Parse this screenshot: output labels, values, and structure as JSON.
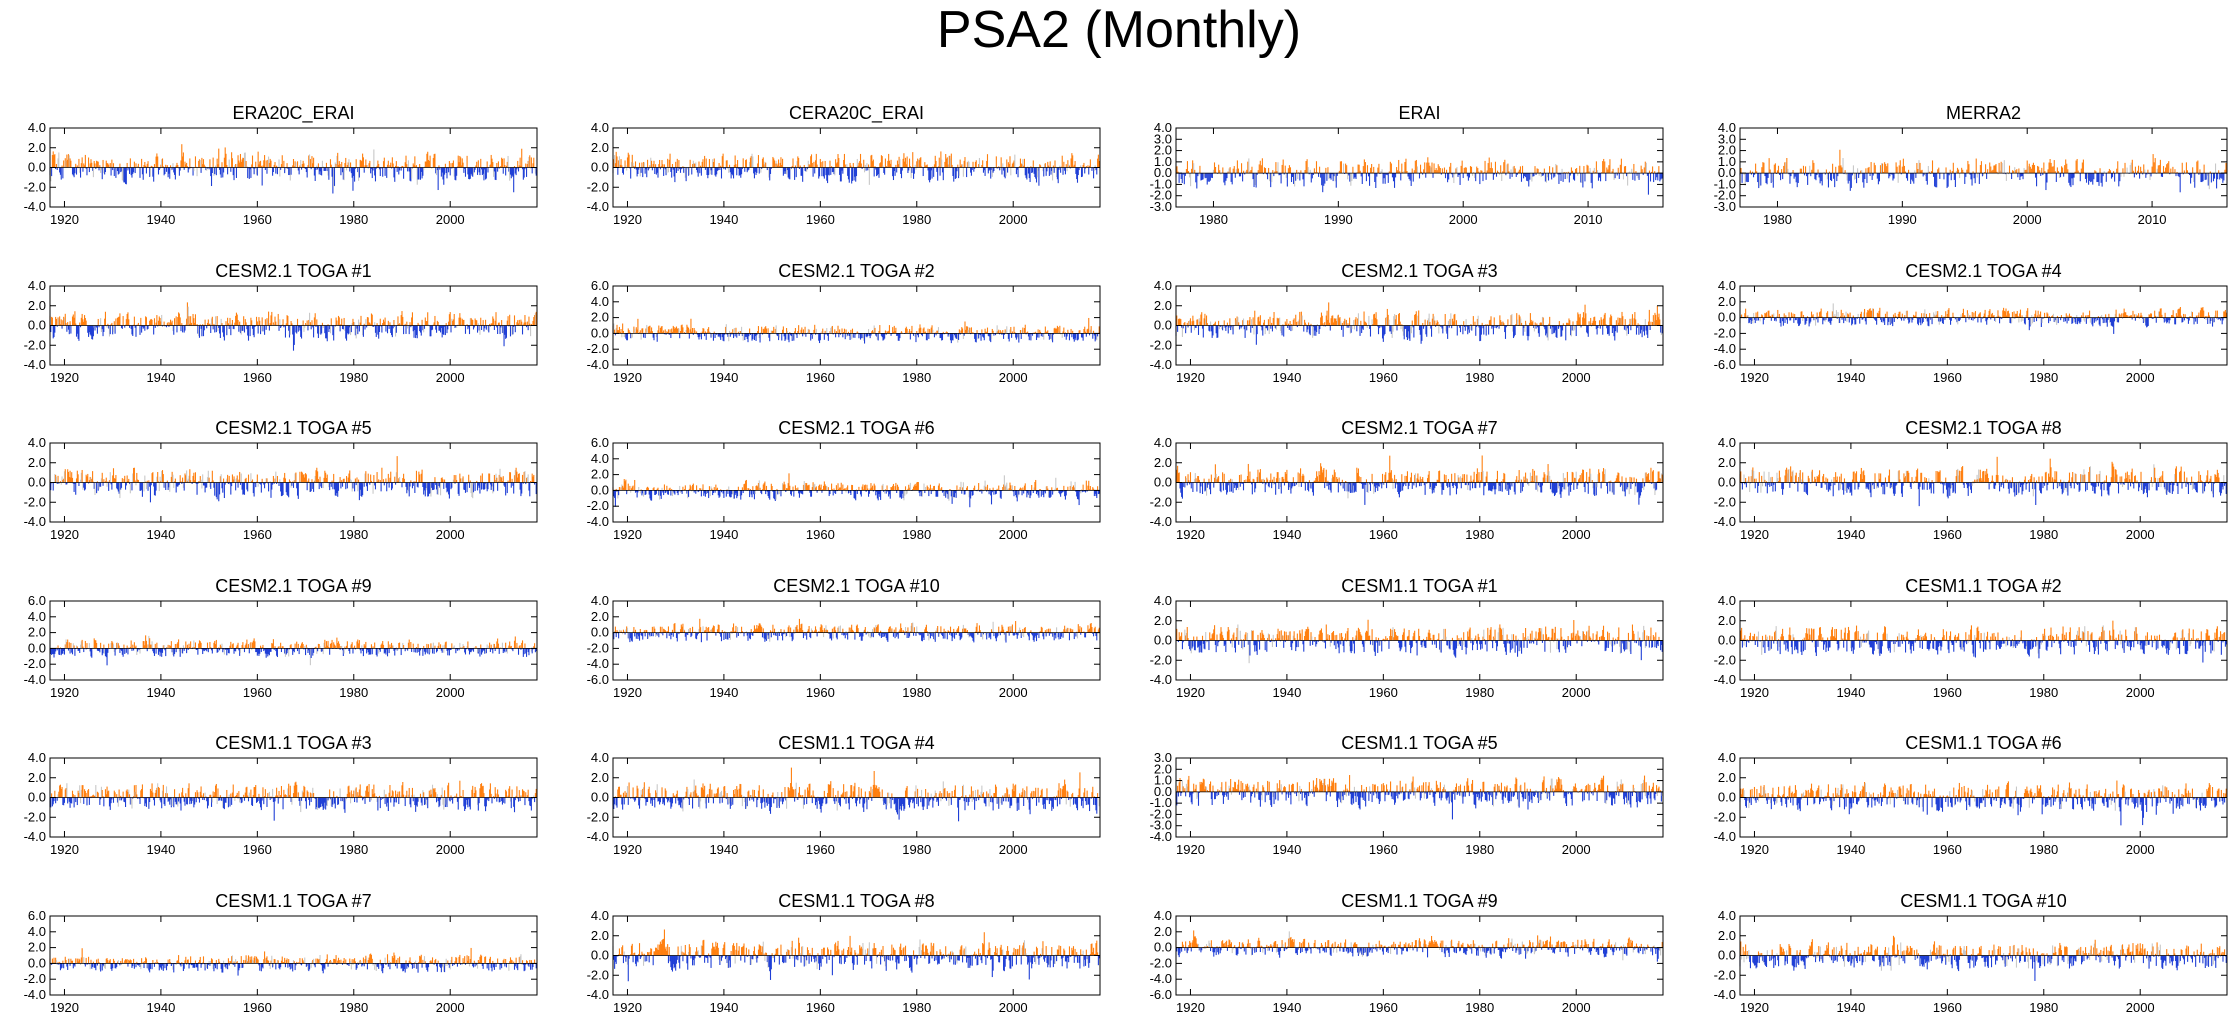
{
  "title": "PSA2 (Monthly)",
  "colors": {
    "positive": "#ff7f0e",
    "negative": "#1f3fd6",
    "axis": "#000000",
    "faint": "#c8c8c8"
  },
  "chart_data": [
    {
      "type": "bar",
      "title": "ERA20C_ERAI",
      "x_range": [
        1917,
        2018
      ],
      "x_ticks": [
        1920,
        1940,
        1960,
        1980,
        2000
      ],
      "y_range": [
        -4,
        4
      ],
      "y_ticks": [
        "4.0",
        "2.0",
        "0.0",
        "-2.0",
        "-4.0"
      ],
      "y_values": [
        4,
        2,
        0,
        -2,
        -4
      ],
      "amplitude": 2.0,
      "pos_bias": 0.0,
      "seed": 11
    },
    {
      "type": "bar",
      "title": "CERA20C_ERAI",
      "x_range": [
        1917,
        2018
      ],
      "x_ticks": [
        1920,
        1940,
        1960,
        1980,
        2000
      ],
      "y_range": [
        -4,
        4
      ],
      "y_ticks": [
        "4.0",
        "2.0",
        "0.0",
        "-2.0",
        "-4.0"
      ],
      "y_values": [
        4,
        2,
        0,
        -2,
        -4
      ],
      "amplitude": 2.0,
      "pos_bias": 0.0,
      "seed": 12
    },
    {
      "type": "bar",
      "title": "ERAI",
      "x_range": [
        1977,
        2016
      ],
      "x_ticks": [
        1980,
        1990,
        2000,
        2010
      ],
      "y_range": [
        -3,
        4
      ],
      "y_ticks": [
        "4.0",
        "3.0",
        "2.0",
        "1.0",
        "0.0",
        "-1.0",
        "-2.0",
        "-3.0"
      ],
      "y_values": [
        4,
        3,
        2,
        1,
        0,
        -1,
        -2,
        -3
      ],
      "amplitude": 1.8,
      "pos_bias": 0.0,
      "seed": 13
    },
    {
      "type": "bar",
      "title": "MERRA2",
      "x_range": [
        1977,
        2016
      ],
      "x_ticks": [
        1980,
        1990,
        2000,
        2010
      ],
      "y_range": [
        -3,
        4
      ],
      "y_ticks": [
        "4.0",
        "3.0",
        "2.0",
        "1.0",
        "0.0",
        "-1.0",
        "-2.0",
        "-3.0"
      ],
      "y_values": [
        4,
        3,
        2,
        1,
        0,
        -1,
        -2,
        -3
      ],
      "amplitude": 1.8,
      "pos_bias": 0.0,
      "seed": 14
    },
    {
      "type": "bar",
      "title": "CESM2.1 TOGA #1",
      "x_range": [
        1917,
        2018
      ],
      "x_ticks": [
        1920,
        1940,
        1960,
        1980,
        2000
      ],
      "y_range": [
        -4,
        4
      ],
      "y_ticks": [
        "4.0",
        "2.0",
        "0.0",
        "-2.0",
        "-4.0"
      ],
      "y_values": [
        4,
        2,
        0,
        -2,
        -4
      ],
      "amplitude": 2.0,
      "pos_bias": 0.0,
      "seed": 21
    },
    {
      "type": "bar",
      "title": "CESM2.1 TOGA #2",
      "x_range": [
        1917,
        2018
      ],
      "x_ticks": [
        1920,
        1940,
        1960,
        1980,
        2000
      ],
      "y_range": [
        -4,
        6
      ],
      "y_ticks": [
        "6.0",
        "4.0",
        "2.0",
        "0.0",
        "-2.0",
        "-4.0"
      ],
      "y_values": [
        6,
        4,
        2,
        0,
        -2,
        -4
      ],
      "amplitude": 1.6,
      "pos_bias": 0.0,
      "seed": 22
    },
    {
      "type": "bar",
      "title": "CESM2.1 TOGA #3",
      "x_range": [
        1917,
        2018
      ],
      "x_ticks": [
        1920,
        1940,
        1960,
        1980,
        2000
      ],
      "y_range": [
        -4,
        4
      ],
      "y_ticks": [
        "4.0",
        "2.0",
        "0.0",
        "-2.0",
        "-4.0"
      ],
      "y_values": [
        4,
        2,
        0,
        -2,
        -4
      ],
      "amplitude": 2.0,
      "pos_bias": 0.0,
      "seed": 23
    },
    {
      "type": "bar",
      "title": "CESM2.1 TOGA #4",
      "x_range": [
        1917,
        2018
      ],
      "x_ticks": [
        1920,
        1940,
        1960,
        1980,
        2000
      ],
      "y_range": [
        -6,
        4
      ],
      "y_ticks": [
        "4.0",
        "2.0",
        "0.0",
        "-2.0",
        "-4.0",
        "-6.0"
      ],
      "y_values": [
        4,
        2,
        0,
        -2,
        -4,
        -6
      ],
      "amplitude": 1.6,
      "pos_bias": 0.0,
      "seed": 24
    },
    {
      "type": "bar",
      "title": "CESM2.1 TOGA #5",
      "x_range": [
        1917,
        2018
      ],
      "x_ticks": [
        1920,
        1940,
        1960,
        1980,
        2000
      ],
      "y_range": [
        -4,
        4
      ],
      "y_ticks": [
        "4.0",
        "2.0",
        "0.0",
        "-2.0",
        "-4.0"
      ],
      "y_values": [
        4,
        2,
        0,
        -2,
        -4
      ],
      "amplitude": 2.0,
      "pos_bias": 0.0,
      "seed": 31
    },
    {
      "type": "bar",
      "title": "CESM2.1 TOGA #6",
      "x_range": [
        1917,
        2018
      ],
      "x_ticks": [
        1920,
        1940,
        1960,
        1980,
        2000
      ],
      "y_range": [
        -4,
        6
      ],
      "y_ticks": [
        "6.0",
        "4.0",
        "2.0",
        "0.0",
        "-2.0",
        "-4.0"
      ],
      "y_values": [
        6,
        4,
        2,
        0,
        -2,
        -4
      ],
      "amplitude": 1.6,
      "pos_bias": 0.0,
      "seed": 32
    },
    {
      "type": "bar",
      "title": "CESM2.1 TOGA #7",
      "x_range": [
        1917,
        2018
      ],
      "x_ticks": [
        1920,
        1940,
        1960,
        1980,
        2000
      ],
      "y_range": [
        -4,
        4
      ],
      "y_ticks": [
        "4.0",
        "2.0",
        "0.0",
        "-2.0",
        "-4.0"
      ],
      "y_values": [
        4,
        2,
        0,
        -2,
        -4
      ],
      "amplitude": 2.0,
      "pos_bias": 0.0,
      "seed": 33
    },
    {
      "type": "bar",
      "title": "CESM2.1 TOGA #8",
      "x_range": [
        1917,
        2018
      ],
      "x_ticks": [
        1920,
        1940,
        1960,
        1980,
        2000
      ],
      "y_range": [
        -4,
        4
      ],
      "y_ticks": [
        "4.0",
        "2.0",
        "0.0",
        "-2.0",
        "-4.0"
      ],
      "y_values": [
        4,
        2,
        0,
        -2,
        -4
      ],
      "amplitude": 2.0,
      "pos_bias": 0.0,
      "seed": 34
    },
    {
      "type": "bar",
      "title": "CESM2.1 TOGA #9",
      "x_range": [
        1917,
        2018
      ],
      "x_ticks": [
        1920,
        1940,
        1960,
        1980,
        2000
      ],
      "y_range": [
        -4,
        6
      ],
      "y_ticks": [
        "6.0",
        "4.0",
        "2.0",
        "0.0",
        "-2.0",
        "-4.0"
      ],
      "y_values": [
        6,
        4,
        2,
        0,
        -2,
        -4
      ],
      "amplitude": 1.6,
      "pos_bias": 0.0,
      "seed": 41
    },
    {
      "type": "bar",
      "title": "CESM2.1 TOGA #10",
      "x_range": [
        1917,
        2018
      ],
      "x_ticks": [
        1920,
        1940,
        1960,
        1980,
        2000
      ],
      "y_range": [
        -6,
        4
      ],
      "y_ticks": [
        "4.0",
        "2.0",
        "0.0",
        "-2.0",
        "-4.0",
        "-6.0"
      ],
      "y_values": [
        4,
        2,
        0,
        -2,
        -4,
        -6
      ],
      "amplitude": 1.6,
      "pos_bias": 0.0,
      "seed": 42
    },
    {
      "type": "bar",
      "title": "CESM1.1 TOGA #1",
      "x_range": [
        1917,
        2018
      ],
      "x_ticks": [
        1920,
        1940,
        1960,
        1980,
        2000
      ],
      "y_range": [
        -4,
        4
      ],
      "y_ticks": [
        "4.0",
        "2.0",
        "0.0",
        "-2.0",
        "-4.0"
      ],
      "y_values": [
        4,
        2,
        0,
        -2,
        -4
      ],
      "amplitude": 2.0,
      "pos_bias": 0.0,
      "seed": 43
    },
    {
      "type": "bar",
      "title": "CESM1.1 TOGA #2",
      "x_range": [
        1917,
        2018
      ],
      "x_ticks": [
        1920,
        1940,
        1960,
        1980,
        2000
      ],
      "y_range": [
        -4,
        4
      ],
      "y_ticks": [
        "4.0",
        "2.0",
        "0.0",
        "-2.0",
        "-4.0"
      ],
      "y_values": [
        4,
        2,
        0,
        -2,
        -4
      ],
      "amplitude": 2.0,
      "pos_bias": 0.0,
      "seed": 44
    },
    {
      "type": "bar",
      "title": "CESM1.1 TOGA #3",
      "x_range": [
        1917,
        2018
      ],
      "x_ticks": [
        1920,
        1940,
        1960,
        1980,
        2000
      ],
      "y_range": [
        -4,
        4
      ],
      "y_ticks": [
        "4.0",
        "2.0",
        "0.0",
        "-2.0",
        "-4.0"
      ],
      "y_values": [
        4,
        2,
        0,
        -2,
        -4
      ],
      "amplitude": 2.0,
      "pos_bias": 0.0,
      "seed": 51
    },
    {
      "type": "bar",
      "title": "CESM1.1 TOGA #4",
      "x_range": [
        1917,
        2018
      ],
      "x_ticks": [
        1920,
        1940,
        1960,
        1980,
        2000
      ],
      "y_range": [
        -4,
        4
      ],
      "y_ticks": [
        "4.0",
        "2.0",
        "0.0",
        "-2.0",
        "-4.0"
      ],
      "y_values": [
        4,
        2,
        0,
        -2,
        -4
      ],
      "amplitude": 2.0,
      "pos_bias": 0.0,
      "seed": 52
    },
    {
      "type": "bar",
      "title": "CESM1.1 TOGA #5",
      "x_range": [
        1917,
        2018
      ],
      "x_ticks": [
        1920,
        1940,
        1960,
        1980,
        2000
      ],
      "y_range": [
        -4,
        3
      ],
      "y_ticks": [
        "3.0",
        "2.0",
        "1.0",
        "0.0",
        "-1.0",
        "-2.0",
        "-3.0",
        "-4.0"
      ],
      "y_values": [
        3,
        2,
        1,
        0,
        -1,
        -2,
        -3,
        -4
      ],
      "amplitude": 1.8,
      "pos_bias": 0.0,
      "seed": 53
    },
    {
      "type": "bar",
      "title": "CESM1.1 TOGA #6",
      "x_range": [
        1917,
        2018
      ],
      "x_ticks": [
        1920,
        1940,
        1960,
        1980,
        2000
      ],
      "y_range": [
        -4,
        4
      ],
      "y_ticks": [
        "4.0",
        "2.0",
        "0.0",
        "-2.0",
        "-4.0"
      ],
      "y_values": [
        4,
        2,
        0,
        -2,
        -4
      ],
      "amplitude": 2.0,
      "pos_bias": 0.0,
      "seed": 54
    },
    {
      "type": "bar",
      "title": "CESM1.1 TOGA #7",
      "x_range": [
        1917,
        2018
      ],
      "x_ticks": [
        1920,
        1940,
        1960,
        1980,
        2000
      ],
      "y_range": [
        -4,
        6
      ],
      "y_ticks": [
        "6.0",
        "4.0",
        "2.0",
        "0.0",
        "-2.0",
        "-4.0"
      ],
      "y_values": [
        6,
        4,
        2,
        0,
        -2,
        -4
      ],
      "amplitude": 1.6,
      "pos_bias": 0.0,
      "seed": 61
    },
    {
      "type": "bar",
      "title": "CESM1.1 TOGA #8",
      "x_range": [
        1917,
        2018
      ],
      "x_ticks": [
        1920,
        1940,
        1960,
        1980,
        2000
      ],
      "y_range": [
        -4,
        4
      ],
      "y_ticks": [
        "4.0",
        "2.0",
        "0.0",
        "-2.0",
        "-4.0"
      ],
      "y_values": [
        4,
        2,
        0,
        -2,
        -4
      ],
      "amplitude": 2.0,
      "pos_bias": 0.0,
      "seed": 62
    },
    {
      "type": "bar",
      "title": "CESM1.1 TOGA #9",
      "x_range": [
        1917,
        2018
      ],
      "x_ticks": [
        1920,
        1940,
        1960,
        1980,
        2000
      ],
      "y_range": [
        -6,
        4
      ],
      "y_ticks": [
        "4.0",
        "2.0",
        "0.0",
        "-2.0",
        "-4.0",
        "-6.0"
      ],
      "y_values": [
        4,
        2,
        0,
        -2,
        -4,
        -6
      ],
      "amplitude": 1.6,
      "pos_bias": 0.0,
      "seed": 63
    },
    {
      "type": "bar",
      "title": "CESM1.1 TOGA #10",
      "x_range": [
        1917,
        2018
      ],
      "x_ticks": [
        1920,
        1940,
        1960,
        1980,
        2000
      ],
      "y_range": [
        -4,
        4
      ],
      "y_ticks": [
        "4.0",
        "2.0",
        "0.0",
        "-2.0",
        "-4.0"
      ],
      "y_values": [
        4,
        2,
        0,
        -2,
        -4
      ],
      "amplitude": 2.0,
      "pos_bias": 0.0,
      "seed": 64
    }
  ]
}
